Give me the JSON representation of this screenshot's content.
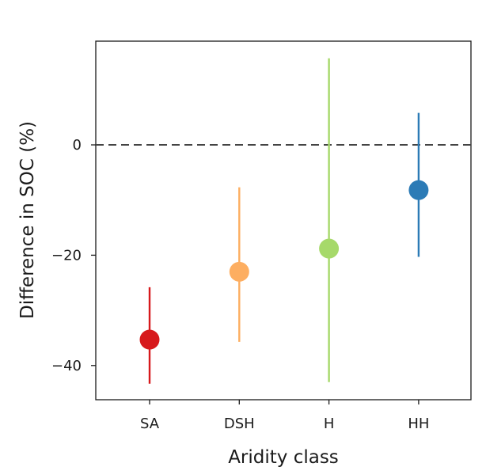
{
  "chart_data": {
    "type": "scatter",
    "subtype": "point-with-error-bars",
    "title": "",
    "xlabel": "Aridity class",
    "ylabel": "Difference in SOC (%)",
    "categories": [
      "SA",
      "DSH",
      "H",
      "HH"
    ],
    "series": [
      {
        "points": [
          {
            "category": "SA",
            "value": -35.3,
            "lower": -43.3,
            "upper": -25.8,
            "color": "#d7191c"
          },
          {
            "category": "DSH",
            "value": -23.0,
            "lower": -35.7,
            "upper": -7.7,
            "color": "#fdae61"
          },
          {
            "category": "H",
            "value": -18.8,
            "lower": -43.0,
            "upper": 15.7,
            "color": "#a6d96a"
          },
          {
            "category": "HH",
            "value": -8.2,
            "lower": -20.3,
            "upper": 5.8,
            "color": "#2c7bb6"
          }
        ]
      }
    ],
    "ylim": [
      -46.2,
      18.8
    ],
    "yticks": [
      -40,
      -20,
      0
    ],
    "ytick_labels": [
      "−40",
      "−20",
      "0"
    ],
    "reference_line": {
      "y": 0,
      "style": "dashed",
      "color": "#444444"
    },
    "grid": false,
    "legend": "none"
  }
}
